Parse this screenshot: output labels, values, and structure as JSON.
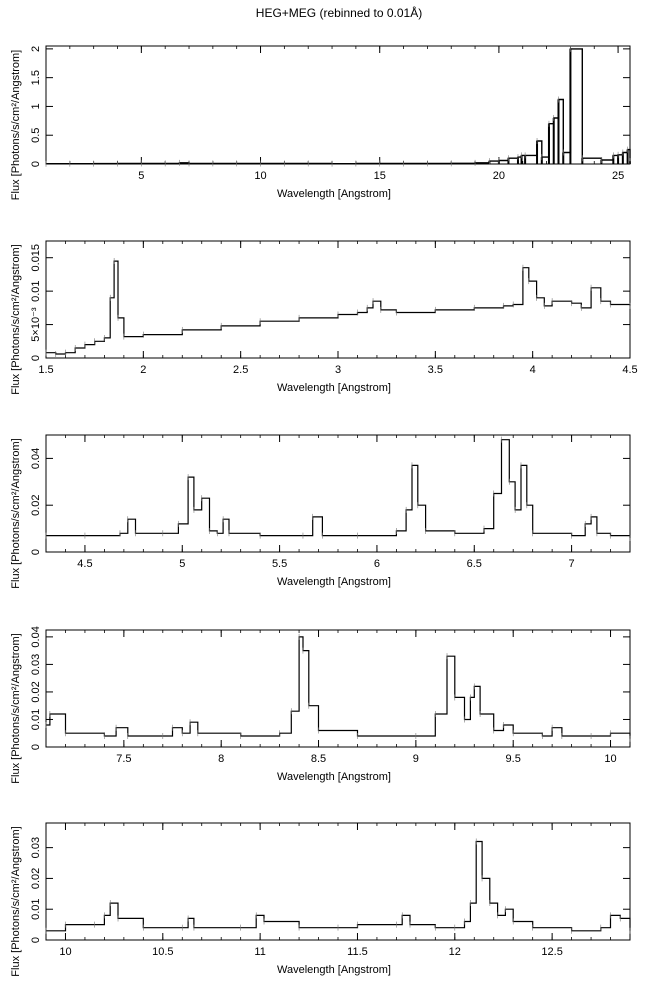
{
  "title": "HEG+MEG (rebinned to 0.01Å)",
  "chart_data": [
    {
      "type": "line",
      "xlabel": "Wavelength [Angstrom]",
      "ylabel": "Flux [Photons/s/cm²/Angstrom]",
      "xlim": [
        1,
        25.5
      ],
      "ylim": [
        0,
        2.05
      ],
      "xticks": [
        5,
        10,
        15,
        20,
        25
      ],
      "yticks": [
        0,
        0.5,
        1,
        1.5,
        2
      ],
      "ytick_labels": [
        "0",
        "0.5",
        "1",
        "1.5",
        "2"
      ],
      "series": [
        {
          "x": [
            1,
            2,
            3,
            4,
            5,
            6,
            6.6,
            7,
            8,
            9,
            10,
            11,
            12,
            13,
            14,
            15,
            16,
            17,
            18,
            19,
            19.6,
            20,
            20.4,
            20.8,
            20.95,
            21.1,
            21.6,
            21.8,
            22.1,
            22.3,
            22.5,
            22.7,
            23.0,
            23.5,
            24.3,
            24.8,
            25.0,
            25.2,
            25.4,
            25.5
          ],
          "y": [
            0.005,
            0.006,
            0.007,
            0.008,
            0.01,
            0.01,
            0.02,
            0.01,
            0.01,
            0.01,
            0.008,
            0.008,
            0.01,
            0.006,
            0.008,
            0.008,
            0.008,
            0.01,
            0.012,
            0.02,
            0.05,
            0.06,
            0.1,
            0.12,
            0.15,
            0.15,
            0.4,
            0.12,
            0.7,
            0.8,
            1.12,
            0.2,
            2.0,
            0.1,
            0.07,
            0.15,
            0.16,
            0.2,
            0.25,
            0.05
          ]
        }
      ]
    },
    {
      "type": "line",
      "xlabel": "Wavelength [Angstrom]",
      "ylabel": "Flux [Photons/s/cm²/Angstrom]",
      "xlim": [
        1.5,
        4.5
      ],
      "ylim": [
        0,
        0.0175
      ],
      "xticks": [
        1.5,
        2,
        2.5,
        3,
        3.5,
        4,
        4.5
      ],
      "yticks": [
        0,
        0.005,
        0.01,
        0.015
      ],
      "ytick_labels": [
        "0",
        "5×10⁻³",
        "0.01",
        "0.015"
      ],
      "series": [
        {
          "x": [
            1.5,
            1.55,
            1.6,
            1.65,
            1.7,
            1.75,
            1.8,
            1.83,
            1.85,
            1.87,
            1.9,
            2.0,
            2.2,
            2.4,
            2.6,
            2.8,
            3.0,
            3.1,
            3.15,
            3.18,
            3.22,
            3.3,
            3.5,
            3.7,
            3.85,
            3.9,
            3.95,
            3.98,
            4.02,
            4.06,
            4.1,
            4.2,
            4.25,
            4.3,
            4.35,
            4.4,
            4.5
          ],
          "y": [
            0.0008,
            0.0006,
            0.0008,
            0.0015,
            0.002,
            0.0025,
            0.003,
            0.009,
            0.0145,
            0.006,
            0.0032,
            0.0035,
            0.0042,
            0.0048,
            0.0055,
            0.006,
            0.0065,
            0.0068,
            0.0075,
            0.0085,
            0.0072,
            0.0068,
            0.0072,
            0.0075,
            0.0078,
            0.008,
            0.0135,
            0.0115,
            0.009,
            0.0078,
            0.0085,
            0.0082,
            0.0075,
            0.0105,
            0.0085,
            0.008,
            0.0078
          ]
        }
      ]
    },
    {
      "type": "line",
      "xlabel": "Wavelength [Angstrom]",
      "ylabel": "Flux [Photons/s/cm²/Angstrom]",
      "xlim": [
        4.3,
        7.3
      ],
      "ylim": [
        0,
        0.05
      ],
      "xticks": [
        4.5,
        5,
        5.5,
        6,
        6.5,
        7
      ],
      "yticks": [
        0,
        0.02,
        0.04
      ],
      "ytick_labels": [
        "0",
        "0.02",
        "0.04"
      ],
      "series": [
        {
          "x": [
            4.3,
            4.5,
            4.68,
            4.72,
            4.76,
            4.9,
            4.98,
            5.03,
            5.06,
            5.1,
            5.14,
            5.18,
            5.21,
            5.24,
            5.4,
            5.62,
            5.67,
            5.72,
            5.9,
            6.1,
            6.15,
            6.18,
            6.21,
            6.25,
            6.4,
            6.55,
            6.6,
            6.64,
            6.68,
            6.71,
            6.74,
            6.77,
            6.8,
            7.0,
            7.07,
            7.1,
            7.13,
            7.2,
            7.3
          ],
          "y": [
            0.007,
            0.007,
            0.008,
            0.014,
            0.008,
            0.008,
            0.012,
            0.032,
            0.018,
            0.023,
            0.009,
            0.008,
            0.014,
            0.008,
            0.007,
            0.007,
            0.015,
            0.007,
            0.007,
            0.009,
            0.018,
            0.037,
            0.02,
            0.009,
            0.008,
            0.01,
            0.025,
            0.048,
            0.03,
            0.018,
            0.037,
            0.02,
            0.008,
            0.007,
            0.012,
            0.015,
            0.008,
            0.007,
            0.006
          ]
        }
      ]
    },
    {
      "type": "line",
      "xlabel": "Wavelength [Angstrom]",
      "ylabel": "Flux [Photons/s/cm²/Angstrom]",
      "xlim": [
        7.1,
        10.1
      ],
      "ylim": [
        0,
        0.0425
      ],
      "xticks": [
        7.5,
        8,
        8.5,
        9,
        9.5,
        10
      ],
      "yticks": [
        0,
        0.01,
        0.02,
        0.03,
        0.04
      ],
      "ytick_labels": [
        "0",
        "0.01",
        "0.02",
        "0.03",
        "0.04"
      ],
      "series": [
        {
          "x": [
            7.1,
            7.12,
            7.2,
            7.4,
            7.46,
            7.52,
            7.7,
            7.75,
            7.8,
            7.84,
            7.88,
            8.1,
            8.3,
            8.36,
            8.4,
            8.42,
            8.45,
            8.5,
            8.7,
            9.0,
            9.1,
            9.16,
            9.2,
            9.25,
            9.28,
            9.3,
            9.33,
            9.4,
            9.45,
            9.5,
            9.65,
            9.7,
            9.75,
            9.9,
            10.0,
            10.1
          ],
          "y": [
            0.008,
            0.012,
            0.005,
            0.004,
            0.007,
            0.004,
            0.004,
            0.007,
            0.005,
            0.009,
            0.005,
            0.004,
            0.005,
            0.013,
            0.04,
            0.035,
            0.015,
            0.006,
            0.004,
            0.004,
            0.012,
            0.033,
            0.018,
            0.01,
            0.018,
            0.022,
            0.012,
            0.006,
            0.008,
            0.005,
            0.004,
            0.007,
            0.004,
            0.004,
            0.005,
            0.003
          ]
        }
      ]
    },
    {
      "type": "line",
      "xlabel": "Wavelength [Angstrom]",
      "ylabel": "Flux [Photons/s/cm²/Angstrom]",
      "xlim": [
        9.9,
        12.9
      ],
      "ylim": [
        0,
        0.038
      ],
      "xticks": [
        10,
        10.5,
        11,
        11.5,
        12,
        12.5
      ],
      "yticks": [
        0,
        0.01,
        0.02,
        0.03
      ],
      "ytick_labels": [
        "0",
        "0.01",
        "0.02",
        "0.03"
      ],
      "series": [
        {
          "x": [
            9.9,
            10.0,
            10.15,
            10.2,
            10.23,
            10.27,
            10.4,
            10.6,
            10.63,
            10.66,
            10.9,
            10.98,
            11.02,
            11.2,
            11.4,
            11.5,
            11.7,
            11.73,
            11.77,
            11.9,
            12.0,
            12.05,
            12.08,
            12.11,
            12.14,
            12.18,
            12.22,
            12.26,
            12.3,
            12.4,
            12.6,
            12.75,
            12.8,
            12.85,
            12.9
          ],
          "y": [
            0.003,
            0.005,
            0.005,
            0.008,
            0.012,
            0.007,
            0.004,
            0.004,
            0.007,
            0.004,
            0.004,
            0.008,
            0.006,
            0.004,
            0.004,
            0.005,
            0.005,
            0.008,
            0.005,
            0.004,
            0.004,
            0.006,
            0.012,
            0.032,
            0.02,
            0.012,
            0.008,
            0.01,
            0.006,
            0.004,
            0.003,
            0.004,
            0.008,
            0.007,
            0.003
          ]
        }
      ]
    }
  ]
}
